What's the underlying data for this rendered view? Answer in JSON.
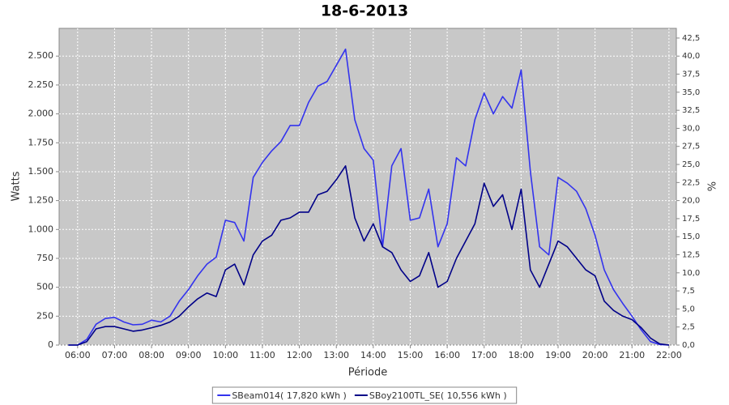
{
  "chart_data": {
    "type": "line",
    "title": "18-6-2013",
    "x_label": "Période",
    "y_label": "Watts",
    "y2_label": "%",
    "x": [
      5.75,
      6,
      6.25,
      6.5,
      6.75,
      7,
      7.25,
      7.5,
      7.75,
      8,
      8.25,
      8.5,
      8.75,
      9,
      9.25,
      9.5,
      9.75,
      10,
      10.25,
      10.5,
      10.75,
      11,
      11.25,
      11.5,
      11.75,
      12,
      12.25,
      12.5,
      12.75,
      13,
      13.25,
      13.5,
      13.75,
      14,
      14.25,
      14.5,
      14.75,
      15,
      15.25,
      15.5,
      15.75,
      16,
      16.25,
      16.5,
      16.75,
      17,
      17.25,
      17.5,
      17.75,
      18,
      18.25,
      18.5,
      18.75,
      19,
      19.25,
      19.5,
      19.75,
      20,
      20.25,
      20.5,
      20.75,
      21,
      21.25,
      21.5,
      21.75,
      22
    ],
    "series": [
      {
        "name": "SBeam014( 17,820 kWh )",
        "color": "#3333ee",
        "values": [
          0,
          0,
          50,
          180,
          230,
          240,
          200,
          175,
          180,
          215,
          200,
          250,
          380,
          480,
          600,
          700,
          760,
          1080,
          1060,
          900,
          1450,
          1580,
          1680,
          1760,
          1900,
          1900,
          2100,
          2240,
          2280,
          2420,
          2560,
          1950,
          1700,
          1600,
          850,
          1550,
          1700,
          1080,
          1100,
          1350,
          850,
          1050,
          1620,
          1550,
          1950,
          2180,
          2000,
          2150,
          2050,
          2380,
          1500,
          850,
          780,
          1450,
          1400,
          1330,
          1180,
          950,
          650,
          480,
          360,
          250,
          130,
          30,
          5,
          0
        ]
      },
      {
        "name": "SBoy2100TL_SE( 10,556 kWh )",
        "color": "#000088",
        "values": [
          0,
          0,
          30,
          140,
          160,
          160,
          140,
          120,
          130,
          150,
          170,
          200,
          250,
          330,
          400,
          450,
          420,
          650,
          700,
          520,
          780,
          900,
          950,
          1080,
          1100,
          1150,
          1150,
          1300,
          1330,
          1430,
          1550,
          1100,
          900,
          1050,
          850,
          800,
          650,
          550,
          600,
          800,
          500,
          550,
          750,
          900,
          1050,
          1400,
          1200,
          1300,
          1000,
          1350,
          650,
          500,
          700,
          900,
          850,
          750,
          650,
          600,
          380,
          300,
          250,
          220,
          150,
          60,
          10,
          0
        ]
      }
    ],
    "xlim": [
      5.5,
      22.2
    ],
    "xticks": [
      {
        "value": 6,
        "label": "06:00"
      },
      {
        "value": 7,
        "label": "07:00"
      },
      {
        "value": 8,
        "label": "08:00"
      },
      {
        "value": 9,
        "label": "09:00"
      },
      {
        "value": 10,
        "label": "10:00"
      },
      {
        "value": 11,
        "label": "11:00"
      },
      {
        "value": 12,
        "label": "12:00"
      },
      {
        "value": 13,
        "label": "13:00"
      },
      {
        "value": 14,
        "label": "14:00"
      },
      {
        "value": 15,
        "label": "15:00"
      },
      {
        "value": 16,
        "label": "16:00"
      },
      {
        "value": 17,
        "label": "17:00"
      },
      {
        "value": 18,
        "label": "18:00"
      },
      {
        "value": 19,
        "label": "19:00"
      },
      {
        "value": 20,
        "label": "20:00"
      },
      {
        "value": 21,
        "label": "21:00"
      },
      {
        "value": 22,
        "label": "22:00"
      }
    ],
    "ylim": [
      0,
      2740
    ],
    "yticks": [
      0,
      250,
      500,
      750,
      {
        "value": 1000,
        "label": "1.000"
      },
      {
        "value": 1250,
        "label": "1.250"
      },
      {
        "value": 1500,
        "label": "1.500"
      },
      {
        "value": 1750,
        "label": "1.750"
      },
      {
        "value": 2000,
        "label": "2.000"
      },
      {
        "value": 2250,
        "label": "2.250"
      },
      {
        "value": 2500,
        "label": "2.500"
      }
    ],
    "y2lim": [
      0,
      43.84
    ],
    "y2ticks": [
      {
        "value": 0,
        "label": "0,0"
      },
      {
        "value": 2.5,
        "label": "2,5"
      },
      {
        "value": 5,
        "label": "5,0"
      },
      {
        "value": 7.5,
        "label": "7,5"
      },
      {
        "value": 10,
        "label": "10,0"
      },
      {
        "value": 12.5,
        "label": "12,5"
      },
      {
        "value": 15,
        "label": "15,0"
      },
      {
        "value": 17.5,
        "label": "17,5"
      },
      {
        "value": 20,
        "label": "20,0"
      },
      {
        "value": 22.5,
        "label": "22,5"
      },
      {
        "value": 25,
        "label": "25,0"
      },
      {
        "value": 27.5,
        "label": "27,5"
      },
      {
        "value": 30,
        "label": "30,0"
      },
      {
        "value": 32.5,
        "label": "32,5"
      },
      {
        "value": 35,
        "label": "35,0"
      },
      {
        "value": 37.5,
        "label": "37,5"
      },
      {
        "value": 40,
        "label": "40,0"
      },
      {
        "value": 42.5,
        "label": "42,5"
      }
    ],
    "grid": true,
    "legend": "bottom"
  }
}
